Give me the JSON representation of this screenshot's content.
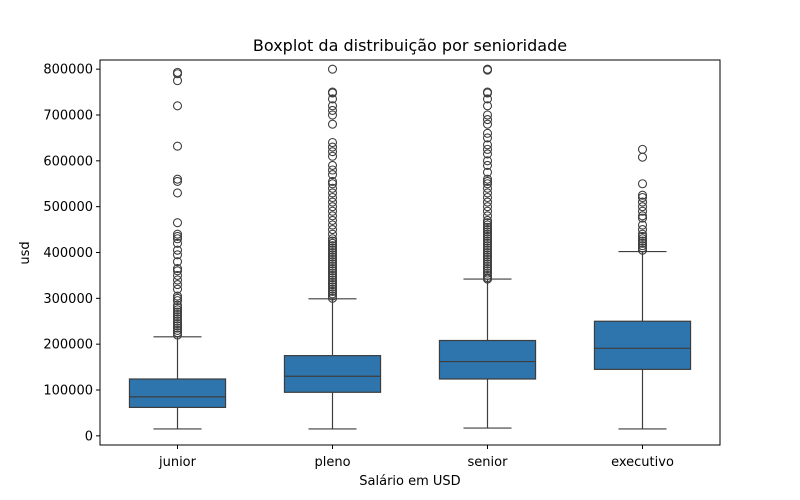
{
  "chart_data": {
    "type": "boxplot",
    "title": "Boxplot da distribuição por senioridade",
    "xlabel": "Salário em USD",
    "ylabel": "usd",
    "ylim": [
      -20000,
      820000
    ],
    "yticks": [
      0,
      100000,
      200000,
      300000,
      400000,
      500000,
      600000,
      700000,
      800000
    ],
    "ytick_labels": [
      "0",
      "100000",
      "200000",
      "300000",
      "400000",
      "500000",
      "600000",
      "700000",
      "800000"
    ],
    "categories": [
      "junior",
      "pleno",
      "senior",
      "executivo"
    ],
    "box_color": "#2e75ad",
    "line_color": "#3d3d3d",
    "grid": false,
    "boxes": [
      {
        "category": "junior",
        "whisker_low": 15000,
        "q1": 62000,
        "median": 85000,
        "q3": 124000,
        "whisker_high": 216000,
        "outliers": [
          220000,
          225000,
          230000,
          235000,
          240000,
          245000,
          250000,
          255000,
          260000,
          265000,
          270000,
          275000,
          280000,
          285000,
          295000,
          300000,
          305000,
          320000,
          330000,
          340000,
          350000,
          360000,
          365000,
          380000,
          395000,
          405000,
          420000,
          430000,
          435000,
          440000,
          465000,
          530000,
          555000,
          560000,
          632000,
          720000,
          775000,
          790000,
          793000
        ]
      },
      {
        "category": "pleno",
        "whisker_low": 15000,
        "q1": 95000,
        "median": 130000,
        "q3": 175000,
        "whisker_high": 299000,
        "outliers": [
          300000,
          305000,
          310000,
          315000,
          320000,
          325000,
          330000,
          335000,
          340000,
          345000,
          350000,
          355000,
          360000,
          365000,
          370000,
          375000,
          380000,
          385000,
          390000,
          395000,
          400000,
          405000,
          410000,
          415000,
          420000,
          425000,
          430000,
          440000,
          450000,
          460000,
          470000,
          480000,
          490000,
          500000,
          510000,
          520000,
          530000,
          540000,
          550000,
          555000,
          570000,
          580000,
          590000,
          610000,
          620000,
          630000,
          640000,
          680000,
          700000,
          710000,
          720000,
          735000,
          748000,
          750000,
          800000
        ]
      },
      {
        "category": "senior",
        "whisker_low": 17000,
        "q1": 124000,
        "median": 162000,
        "q3": 208000,
        "whisker_high": 342000,
        "outliers": [
          342000,
          345000,
          350000,
          355000,
          360000,
          365000,
          370000,
          375000,
          380000,
          385000,
          390000,
          395000,
          400000,
          405000,
          410000,
          415000,
          420000,
          425000,
          430000,
          435000,
          440000,
          445000,
          450000,
          455000,
          460000,
          465000,
          470000,
          480000,
          490000,
          500000,
          510000,
          520000,
          530000,
          540000,
          550000,
          555000,
          560000,
          575000,
          590000,
          600000,
          615000,
          625000,
          635000,
          650000,
          660000,
          680000,
          690000,
          700000,
          720000,
          735000,
          748000,
          750000,
          798000,
          800000
        ]
      },
      {
        "category": "executivo",
        "whisker_low": 15000,
        "q1": 145000,
        "median": 191000,
        "q3": 250000,
        "whisker_high": 402000,
        "outliers": [
          405000,
          410000,
          415000,
          420000,
          425000,
          430000,
          435000,
          440000,
          450000,
          460000,
          475000,
          480000,
          490000,
          500000,
          510000,
          520000,
          525000,
          550000,
          608000,
          625000
        ]
      }
    ]
  }
}
